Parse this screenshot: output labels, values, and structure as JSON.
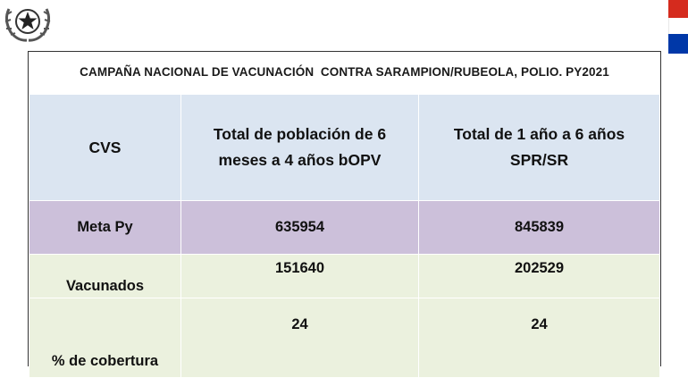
{
  "title": "CAMPAÑA NACIONAL DE VACUNACIÓN  CONTRA SARAMPION/RUBEOLA, POLIO. PY2021",
  "emblem_icon": "star-seal-icon",
  "flag_icon": "paraguay-flag-icon",
  "colors": {
    "header_bg": "#dbe5f1",
    "meta_bg": "#ccc0da",
    "rows_bg": "#ebf1de"
  },
  "table": {
    "headers": [
      "CVS",
      "Total de población de 6\nmeses a 4 años  bOPV",
      "Total  de 1 año a 6 años\nSPR/SR"
    ],
    "rows": [
      {
        "label": "Meta Py",
        "values": [
          "635954",
          "845839"
        ]
      },
      {
        "label": "Vacunados",
        "values": [
          "151640",
          "202529"
        ]
      },
      {
        "label": "% de cobertura",
        "values": [
          "24",
          "24"
        ]
      }
    ]
  }
}
